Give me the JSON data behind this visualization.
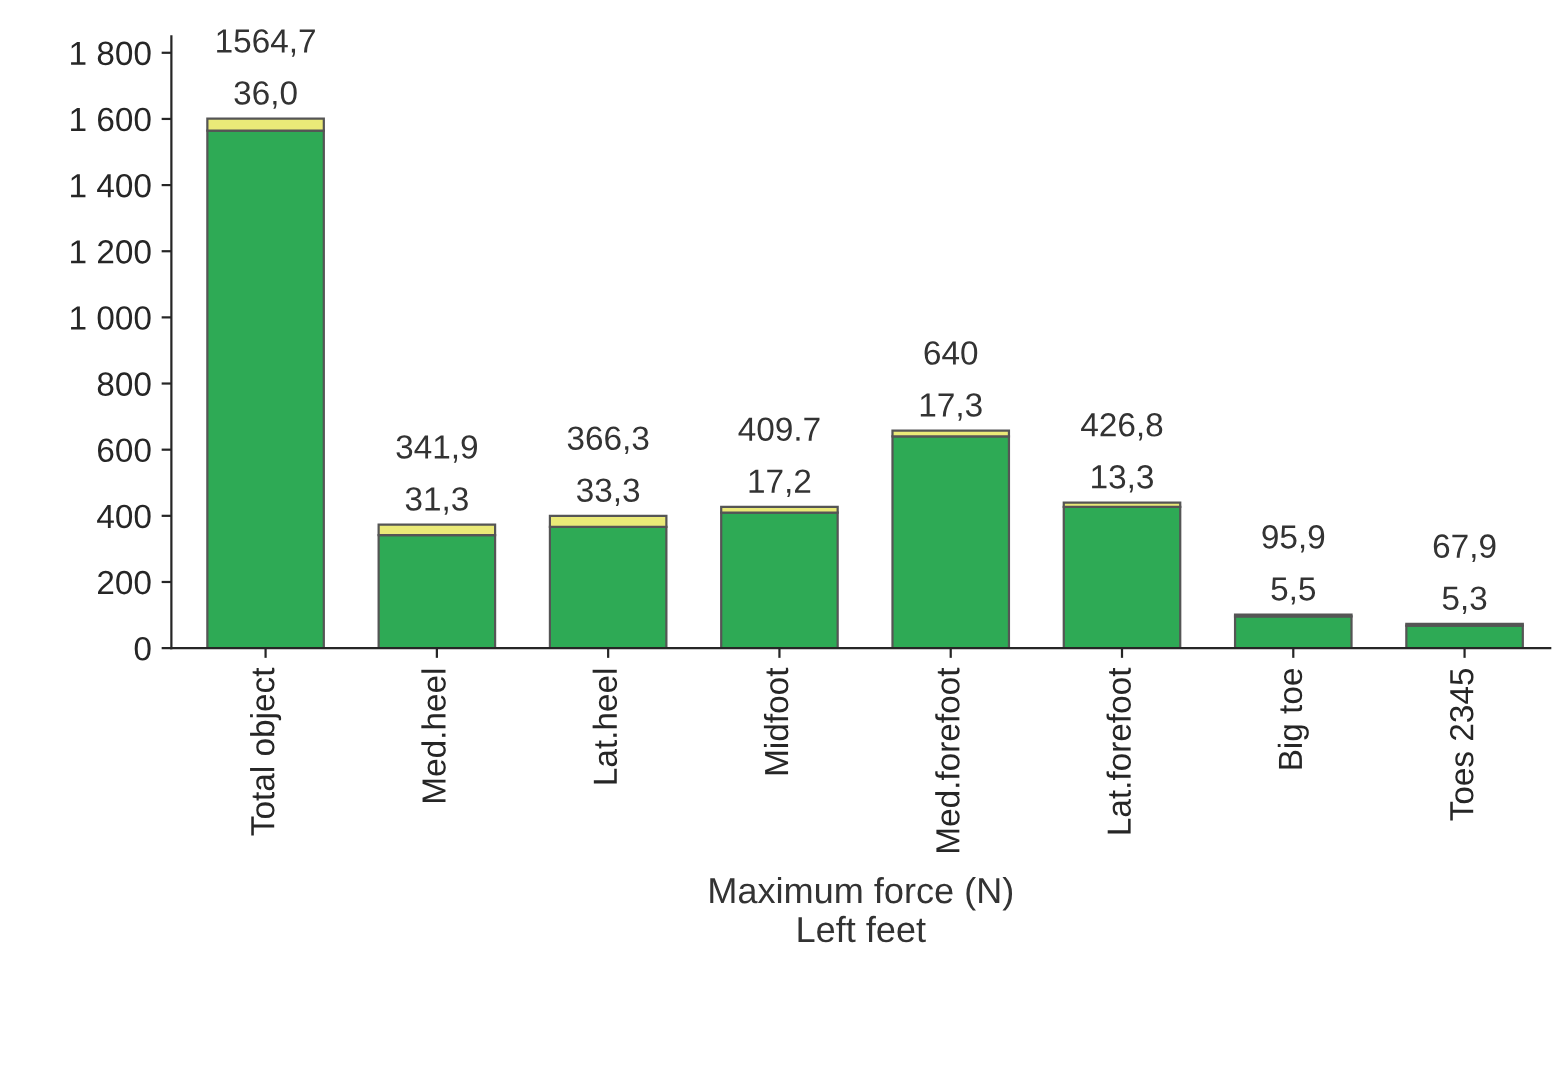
{
  "chart_data": {
    "type": "bar",
    "stacked": true,
    "xlabel": "Maximum force (N)\nLeft feet",
    "categories": [
      "Total object",
      "Med.heel",
      "Lat.heel",
      "Midfoot",
      "Med.forefoot",
      "Lat.forefoot",
      "Big toe",
      "Toes 2345"
    ],
    "series": [
      {
        "color": "#2eaa55",
        "values": [
          1564.7,
          341.9,
          366.3,
          409.7,
          640,
          426.8,
          95.9,
          67.9
        ],
        "value_labels": [
          "1564,7",
          "341,9",
          "366,3",
          "409.7",
          "640",
          "426,8",
          "95,9",
          "67,9"
        ]
      },
      {
        "color": "#eaea78",
        "values": [
          36.0,
          31.3,
          33.3,
          17.2,
          17.3,
          13.3,
          5.5,
          5.3
        ],
        "value_labels": [
          "36,0",
          "31,3",
          "33,3",
          "17,2",
          "17,3",
          "13,3",
          "5,5",
          "5,3"
        ]
      }
    ],
    "ylim": [
      0,
      1850
    ],
    "yticks": [
      0,
      200,
      400,
      600,
      800,
      {
        "value": 1000,
        "label": "1 000"
      },
      {
        "value": 1200,
        "label": "1 200"
      },
      {
        "value": 1400,
        "label": "1 400"
      },
      {
        "value": 1600,
        "label": "1 600"
      },
      {
        "value": 1800,
        "label": "1 800"
      }
    ],
    "grid": false,
    "legend": false
  }
}
